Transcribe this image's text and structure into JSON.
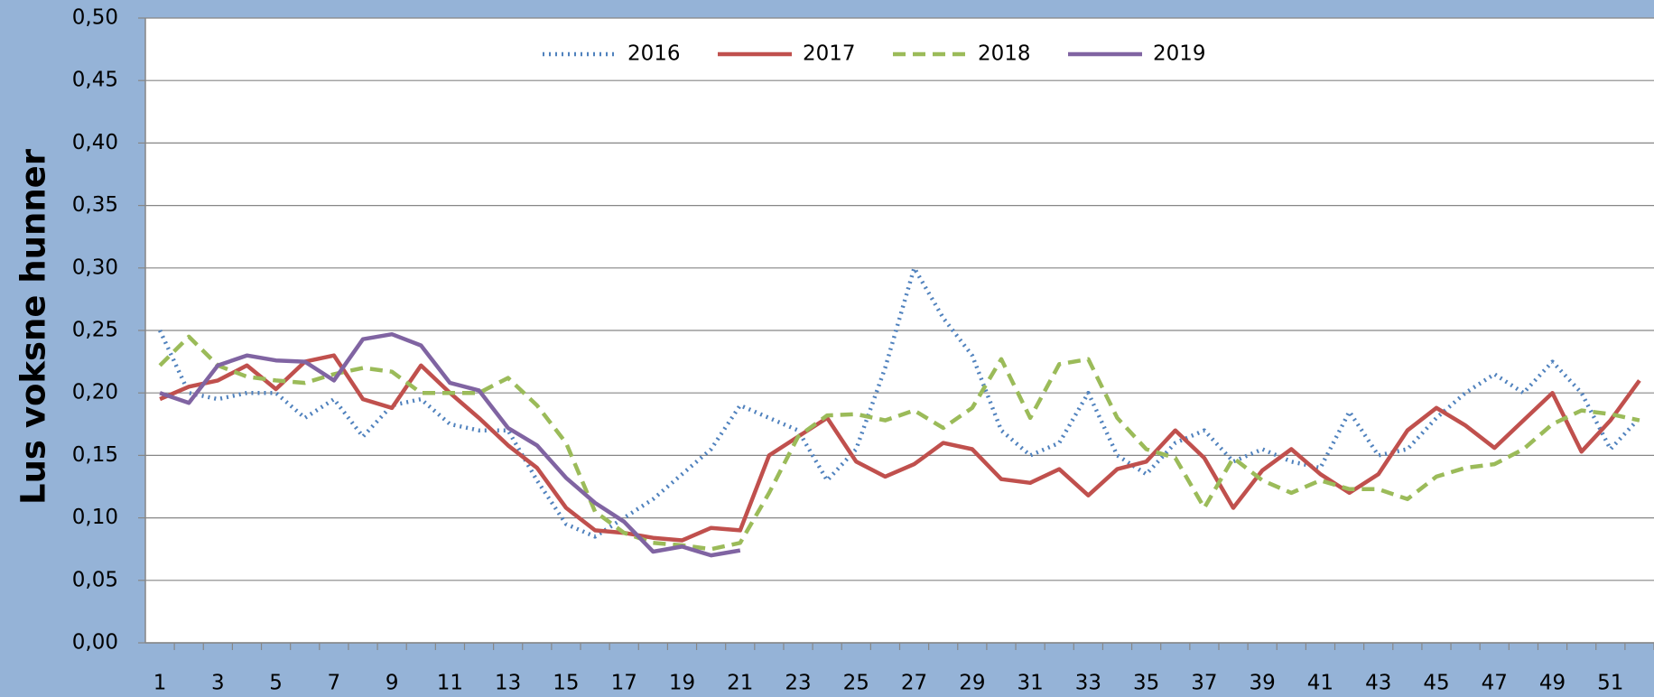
{
  "chart_data": {
    "type": "line",
    "y_label": "Lus voksne hunner",
    "categories": [
      1,
      null,
      3,
      null,
      5,
      null,
      7,
      null,
      9,
      null,
      11,
      null,
      13,
      null,
      15,
      null,
      17,
      null,
      19,
      null,
      21,
      null,
      23,
      null,
      25,
      null,
      27,
      null,
      29,
      null,
      31,
      null,
      33,
      null,
      35,
      null,
      37,
      null,
      39,
      null,
      41,
      null,
      43,
      null,
      45,
      null,
      47,
      null,
      49,
      null,
      51,
      null
    ],
    "series": [
      {
        "name": "2016",
        "color": "#4f81bd",
        "dash": "dotted",
        "values": [
          0.25,
          0.2,
          0.195,
          0.2,
          0.2,
          0.18,
          0.195,
          0.165,
          0.19,
          0.195,
          0.175,
          0.17,
          0.17,
          0.13,
          0.095,
          0.085,
          0.1,
          0.115,
          0.135,
          0.155,
          0.19,
          0.18,
          0.17,
          0.13,
          0.155,
          0.22,
          0.3,
          0.26,
          0.23,
          0.17,
          0.15,
          0.16,
          0.2,
          0.15,
          0.135,
          0.16,
          0.17,
          0.145,
          0.155,
          0.145,
          0.14,
          0.185,
          0.15,
          0.155,
          0.18,
          0.2,
          0.215,
          0.2,
          0.225,
          0.2,
          0.155,
          0.18
        ]
      },
      {
        "name": "2017",
        "color": "#c0504d",
        "dash": "solid",
        "values": [
          0.195,
          0.205,
          0.21,
          0.222,
          0.203,
          0.225,
          0.23,
          0.195,
          0.188,
          0.222,
          0.2,
          0.18,
          0.158,
          0.14,
          0.108,
          0.09,
          0.088,
          0.084,
          0.082,
          0.092,
          0.09,
          0.15,
          0.165,
          0.18,
          0.145,
          0.133,
          0.143,
          0.16,
          0.155,
          0.131,
          0.128,
          0.139,
          0.118,
          0.139,
          0.145,
          0.17,
          0.148,
          0.108,
          0.138,
          0.155,
          0.135,
          0.12,
          0.135,
          0.17,
          0.188,
          0.174,
          0.156,
          0.178,
          0.2,
          0.153,
          0.178,
          0.21
        ]
      },
      {
        "name": "2018",
        "color": "#9bbb59",
        "dash": "dashed",
        "values": [
          0.222,
          0.245,
          0.222,
          0.213,
          0.21,
          0.208,
          0.215,
          0.22,
          0.217,
          0.2,
          0.2,
          0.2,
          0.212,
          0.19,
          0.16,
          0.105,
          0.088,
          0.08,
          0.078,
          0.075,
          0.08,
          0.12,
          0.165,
          0.182,
          0.183,
          0.178,
          0.186,
          0.172,
          0.188,
          0.227,
          0.18,
          0.223,
          0.227,
          0.18,
          0.155,
          0.148,
          0.108,
          0.148,
          0.13,
          0.12,
          0.13,
          0.123,
          0.123,
          0.115,
          0.133,
          0.14,
          0.143,
          0.155,
          0.175,
          0.186,
          0.183,
          0.178
        ]
      },
      {
        "name": "2019",
        "color": "#8064a2",
        "dash": "solid",
        "values": [
          0.2,
          0.192,
          0.222,
          0.23,
          0.226,
          0.225,
          0.21,
          0.243,
          0.247,
          0.238,
          0.208,
          0.202,
          0.172,
          0.158,
          0.132,
          0.112,
          0.097,
          0.073,
          0.077,
          0.07,
          0.074,
          null,
          null,
          null,
          null,
          null,
          null,
          null,
          null,
          null,
          null,
          null,
          null,
          null,
          null,
          null,
          null,
          null,
          null,
          null,
          null,
          null,
          null,
          null,
          null,
          null,
          null,
          null,
          null,
          null,
          null,
          null
        ]
      }
    ],
    "ylim": [
      0,
      0.5
    ],
    "yticks": [
      {
        "value": 0,
        "label": "0,00"
      },
      {
        "value": 0.05,
        "label": "0,05"
      },
      {
        "value": 0.1,
        "label": "0,10"
      },
      {
        "value": 0.15,
        "label": "0,15"
      },
      {
        "value": 0.2,
        "label": "0,20"
      },
      {
        "value": 0.25,
        "label": "0,25"
      },
      {
        "value": 0.3,
        "label": "0,30"
      },
      {
        "value": 0.35,
        "label": "0,35"
      },
      {
        "value": 0.4,
        "label": "0,40"
      },
      {
        "value": 0.45,
        "label": "0,45"
      },
      {
        "value": 0.5,
        "label": "0,50"
      }
    ],
    "grid": true,
    "legend": "top"
  }
}
